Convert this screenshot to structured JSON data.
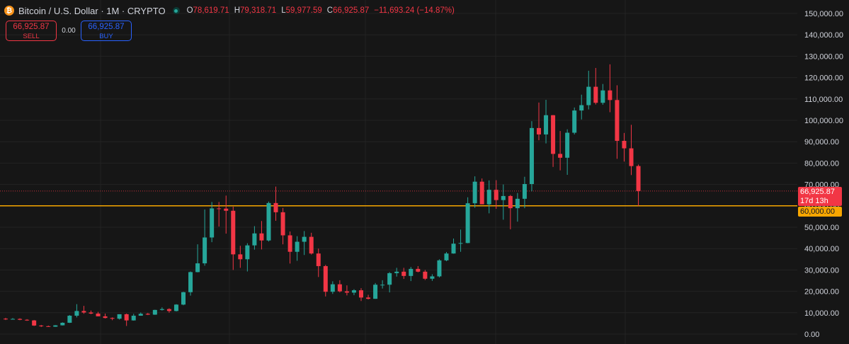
{
  "header": {
    "logo_glyph": "₿",
    "symbol_title": "Bitcoin / U.S. Dollar · 1M · CRYPTO",
    "ohlc": {
      "open_label": "O",
      "open": "78,619.71",
      "high_label": "H",
      "high": "79,318.71",
      "low_label": "L",
      "low": "59,977.59",
      "close_label": "C",
      "close": "66,925.87",
      "change": "−11,693.24 (−14.87%)"
    }
  },
  "trade": {
    "sell_price": "66,925.87",
    "sell_label": "SELL",
    "spread": "0.00",
    "buy_price": "66,925.87",
    "buy_label": "BUY"
  },
  "price_scale": {
    "last_price": "66,925.87",
    "countdown": "17d 13h",
    "horizontal_line_label": "60,000.00"
  },
  "colors": {
    "background": "#161616",
    "up": "#26a69a",
    "down": "#f23645",
    "horizontal_line": "#f7a600",
    "grid": "#232323",
    "axis_text": "#d1d4dc"
  },
  "chart_data": {
    "type": "candlestick",
    "timeframe": "1M",
    "ylim": [
      0,
      150000
    ],
    "y_ticks": [
      "0.00",
      "10,000.00",
      "20,000.00",
      "30,000.00",
      "40,000.00",
      "50,000.00",
      "60,000.00",
      "70,000.00",
      "80,000.00",
      "90,000.00",
      "100,000.00",
      "110,000.00",
      "120,000.00",
      "130,000.00",
      "140,000.00",
      "150,000.00"
    ],
    "horizontal_line": 60000,
    "last_price": 66925.87,
    "ohlc": [
      [
        7200,
        7600,
        6600,
        6950
      ],
      [
        6950,
        7500,
        6800,
        7100
      ],
      [
        7100,
        7400,
        6500,
        6700
      ],
      [
        6700,
        7000,
        6200,
        6400
      ],
      [
        6400,
        6600,
        3800,
        4000
      ],
      [
        4000,
        4300,
        3300,
        3700
      ],
      [
        3700,
        4000,
        3400,
        3450
      ],
      [
        3450,
        4200,
        3400,
        4100
      ],
      [
        4100,
        5500,
        4050,
        5300
      ],
      [
        5300,
        8900,
        5200,
        8600
      ],
      [
        8600,
        14000,
        7800,
        10800
      ],
      [
        10800,
        13200,
        9500,
        10100
      ],
      [
        10100,
        11000,
        9300,
        9600
      ],
      [
        9600,
        10400,
        8800,
        8300
      ],
      [
        8300,
        9600,
        7300,
        7550
      ],
      [
        7550,
        7800,
        6500,
        7200
      ],
      [
        7200,
        8600,
        6800,
        9300
      ],
      [
        9300,
        9600,
        3800,
        6400
      ],
      [
        6400,
        9500,
        6300,
        8600
      ],
      [
        8600,
        10100,
        8600,
        9500
      ],
      [
        9500,
        9900,
        8900,
        9100
      ],
      [
        9100,
        11400,
        9000,
        11300
      ],
      [
        11300,
        12500,
        11000,
        11700
      ],
      [
        11700,
        12100,
        10000,
        10800
      ],
      [
        10800,
        14000,
        10600,
        13800
      ],
      [
        13800,
        19800,
        13500,
        19600
      ],
      [
        19600,
        29300,
        18000,
        29000
      ],
      [
        29000,
        42000,
        28900,
        33100
      ],
      [
        33100,
        58300,
        32000,
        45200
      ],
      [
        45200,
        61800,
        43000,
        58800
      ],
      [
        58800,
        61800,
        50300,
        58700
      ],
      [
        58700,
        64800,
        47000,
        57700
      ],
      [
        57700,
        59600,
        30000,
        37300
      ],
      [
        37300,
        41300,
        31000,
        35000
      ],
      [
        35000,
        42500,
        29300,
        41500
      ],
      [
        41500,
        50500,
        39500,
        47100
      ],
      [
        47100,
        52900,
        39600,
        43800
      ],
      [
        43800,
        62000,
        43300,
        61300
      ],
      [
        61300,
        69000,
        53000,
        57000
      ],
      [
        57000,
        59000,
        42000,
        46200
      ],
      [
        46200,
        48000,
        33000,
        38500
      ],
      [
        38500,
        45800,
        34300,
        43200
      ],
      [
        43200,
        48200,
        37000,
        45500
      ],
      [
        45500,
        47400,
        37200,
        37700
      ],
      [
        37700,
        40000,
        26700,
        31800
      ],
      [
        31800,
        32400,
        17600,
        19800
      ],
      [
        19800,
        24700,
        18800,
        23300
      ],
      [
        23300,
        25200,
        19500,
        20000
      ],
      [
        20000,
        22800,
        18100,
        19400
      ],
      [
        19400,
        21000,
        18200,
        20500
      ],
      [
        20500,
        21500,
        15500,
        17100
      ],
      [
        17100,
        18400,
        16200,
        16500
      ],
      [
        16500,
        23900,
        16500,
        23100
      ],
      [
        23100,
        25200,
        21300,
        23100
      ],
      [
        23100,
        29000,
        19500,
        28500
      ],
      [
        28500,
        31000,
        26900,
        29200
      ],
      [
        29200,
        31000,
        25800,
        27200
      ],
      [
        27200,
        31400,
        24800,
        30500
      ],
      [
        30500,
        31800,
        28900,
        29200
      ],
      [
        29200,
        30000,
        25300,
        25900
      ],
      [
        25900,
        28000,
        24900,
        27000
      ],
      [
        27000,
        35000,
        26500,
        34500
      ],
      [
        34500,
        38400,
        34100,
        37700
      ],
      [
        37700,
        44700,
        37600,
        42300
      ],
      [
        42300,
        48900,
        38500,
        42600
      ],
      [
        42600,
        64000,
        42500,
        61200
      ],
      [
        61200,
        73800,
        59100,
        71300
      ],
      [
        71300,
        72800,
        60800,
        60700
      ],
      [
        60700,
        71900,
        56500,
        67500
      ],
      [
        67500,
        72000,
        58600,
        62700
      ],
      [
        62700,
        70000,
        53500,
        64600
      ],
      [
        64600,
        65100,
        49000,
        58900
      ],
      [
        58900,
        66000,
        52600,
        63300
      ],
      [
        63300,
        73600,
        58900,
        70200
      ],
      [
        70200,
        99600,
        66800,
        96400
      ],
      [
        96400,
        108300,
        90700,
        93400
      ],
      [
        93400,
        109600,
        89200,
        102400
      ],
      [
        102400,
        102500,
        78200,
        84300
      ],
      [
        84300,
        95000,
        76600,
        82500
      ],
      [
        82500,
        95800,
        74500,
        94200
      ],
      [
        94200,
        106000,
        93400,
        104600
      ],
      [
        104600,
        112000,
        100400,
        107100
      ],
      [
        107100,
        123200,
        105100,
        115700
      ],
      [
        115700,
        124500,
        107400,
        108200
      ],
      [
        108200,
        117000,
        107300,
        114000
      ],
      [
        114000,
        126200,
        103800,
        109500
      ],
      [
        109500,
        116400,
        82000,
        90400
      ],
      [
        90400,
        94100,
        80700,
        86900
      ],
      [
        86900,
        97900,
        74400,
        78600
      ],
      [
        78619.71,
        79318.71,
        59977.59,
        66925.87
      ]
    ]
  }
}
